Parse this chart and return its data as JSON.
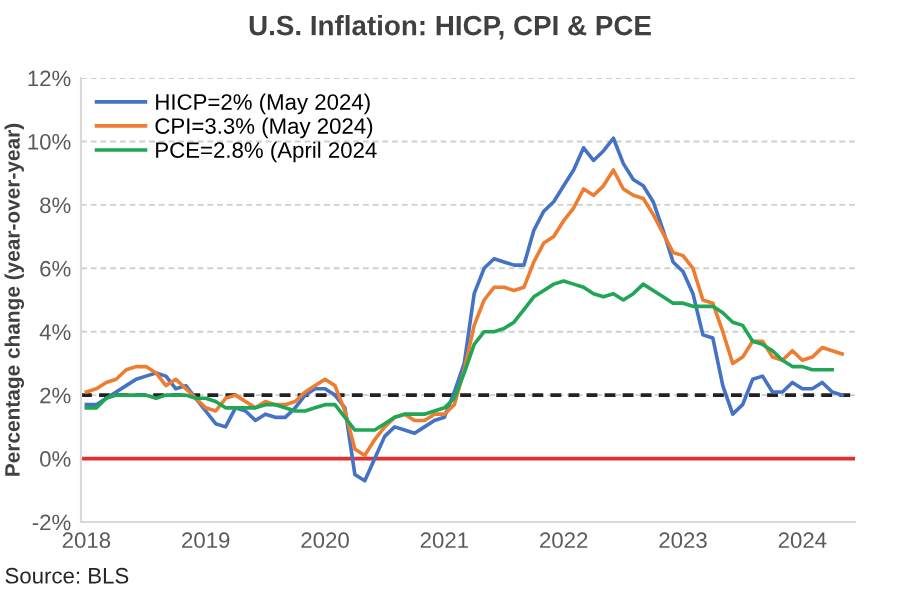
{
  "chart_data": {
    "type": "line",
    "title": "U.S. Inflation: HICP, CPI & PCE",
    "ylabel": "Percentage change (year-over-year)",
    "annotations": [
      "Source: BLS"
    ],
    "x": [
      "2018-01",
      "2018-02",
      "2018-03",
      "2018-04",
      "2018-05",
      "2018-06",
      "2018-07",
      "2018-08",
      "2018-09",
      "2018-10",
      "2018-11",
      "2018-12",
      "2019-01",
      "2019-02",
      "2019-03",
      "2019-04",
      "2019-05",
      "2019-06",
      "2019-07",
      "2019-08",
      "2019-09",
      "2019-10",
      "2019-11",
      "2019-12",
      "2020-01",
      "2020-02",
      "2020-03",
      "2020-04",
      "2020-05",
      "2020-06",
      "2020-07",
      "2020-08",
      "2020-09",
      "2020-10",
      "2020-11",
      "2020-12",
      "2021-01",
      "2021-02",
      "2021-03",
      "2021-04",
      "2021-05",
      "2021-06",
      "2021-07",
      "2021-08",
      "2021-09",
      "2021-10",
      "2021-11",
      "2021-12",
      "2022-01",
      "2022-02",
      "2022-03",
      "2022-04",
      "2022-05",
      "2022-06",
      "2022-07",
      "2022-08",
      "2022-09",
      "2022-10",
      "2022-11",
      "2022-12",
      "2023-01",
      "2023-02",
      "2023-03",
      "2023-04",
      "2023-05",
      "2023-06",
      "2023-07",
      "2023-08",
      "2023-09",
      "2023-10",
      "2023-11",
      "2023-12",
      "2024-01",
      "2024-02",
      "2024-03",
      "2024-04",
      "2024-05"
    ],
    "series": [
      {
        "name": "HICP=2% (May 2024)",
        "color": "#4472c4",
        "values": [
          1.7,
          1.7,
          1.9,
          2.1,
          2.3,
          2.5,
          2.6,
          2.7,
          2.6,
          2.2,
          2.3,
          1.9,
          1.5,
          1.1,
          1.0,
          1.6,
          1.5,
          1.2,
          1.4,
          1.3,
          1.3,
          1.6,
          2.0,
          2.2,
          2.2,
          2.0,
          1.6,
          -0.5,
          -0.7,
          0.0,
          0.7,
          1.0,
          0.9,
          0.8,
          1.0,
          1.2,
          1.3,
          2.1,
          3.0,
          5.2,
          6.0,
          6.3,
          6.2,
          6.1,
          6.1,
          7.2,
          7.8,
          8.1,
          8.6,
          9.1,
          9.8,
          9.4,
          9.7,
          10.1,
          9.3,
          8.8,
          8.6,
          8.1,
          7.2,
          6.2,
          5.9,
          5.2,
          3.9,
          3.8,
          2.3,
          1.4,
          1.7,
          2.5,
          2.6,
          2.1,
          2.1,
          2.4,
          2.2,
          2.2,
          2.4,
          2.1,
          2.0
        ]
      },
      {
        "name": "CPI=3.3% (May 2024)",
        "color": "#ed7d31",
        "values": [
          2.1,
          2.2,
          2.4,
          2.5,
          2.8,
          2.9,
          2.9,
          2.7,
          2.3,
          2.5,
          2.2,
          1.9,
          1.6,
          1.5,
          1.9,
          2.0,
          1.8,
          1.6,
          1.8,
          1.7,
          1.7,
          1.8,
          2.1,
          2.3,
          2.5,
          2.3,
          1.5,
          0.3,
          0.1,
          0.6,
          1.0,
          1.3,
          1.4,
          1.2,
          1.2,
          1.4,
          1.4,
          1.7,
          2.8,
          4.2,
          5.0,
          5.4,
          5.4,
          5.3,
          5.4,
          6.2,
          6.8,
          7.0,
          7.5,
          7.9,
          8.5,
          8.3,
          8.6,
          9.1,
          8.5,
          8.3,
          8.2,
          7.7,
          7.1,
          6.5,
          6.4,
          6.0,
          5.0,
          4.9,
          4.0,
          3.0,
          3.2,
          3.7,
          3.7,
          3.2,
          3.1,
          3.4,
          3.1,
          3.2,
          3.5,
          3.4,
          3.3
        ]
      },
      {
        "name": "PCE=2.8% (April 2024",
        "color": "#21a656",
        "values": [
          1.6,
          1.6,
          1.9,
          2.0,
          2.0,
          2.0,
          2.0,
          1.9,
          2.0,
          2.0,
          2.0,
          1.9,
          1.9,
          1.8,
          1.6,
          1.6,
          1.6,
          1.6,
          1.7,
          1.7,
          1.6,
          1.5,
          1.5,
          1.6,
          1.7,
          1.7,
          1.3,
          0.9,
          0.9,
          0.9,
          1.1,
          1.3,
          1.4,
          1.4,
          1.4,
          1.5,
          1.6,
          1.9,
          2.7,
          3.6,
          4.0,
          4.0,
          4.1,
          4.3,
          4.7,
          5.1,
          5.3,
          5.5,
          5.6,
          5.5,
          5.4,
          5.2,
          5.1,
          5.2,
          5.0,
          5.2,
          5.5,
          5.3,
          5.1,
          4.9,
          4.9,
          4.8,
          4.8,
          4.8,
          4.6,
          4.3,
          4.2,
          3.7,
          3.6,
          3.4,
          3.1,
          2.9,
          2.9,
          2.8,
          2.8,
          2.8,
          null
        ]
      }
    ],
    "ref_lines": [
      {
        "axis": "y",
        "value": 2,
        "color": "#222222",
        "line_style": "dashed"
      },
      {
        "axis": "y",
        "value": 0,
        "color": "#e03030",
        "line_style": "solid"
      }
    ],
    "xlim": [
      "2017-12-15",
      "2024-06-10"
    ],
    "xticks": [
      {
        "value": "2018",
        "label": "2018"
      },
      {
        "value": "2019",
        "label": "2019"
      },
      {
        "value": "2020",
        "label": "2020"
      },
      {
        "value": "2021",
        "label": "2021"
      },
      {
        "value": "2022",
        "label": "2022"
      },
      {
        "value": "2023",
        "label": "2023"
      },
      {
        "value": "2024",
        "label": "2024"
      }
    ],
    "ylim": [
      -2,
      12
    ],
    "yticks": [
      {
        "value": -2,
        "label": "-2%"
      },
      {
        "value": 0,
        "label": "0%"
      },
      {
        "value": 2,
        "label": "2%"
      },
      {
        "value": 4,
        "label": "4%"
      },
      {
        "value": 6,
        "label": "6%"
      },
      {
        "value": 8,
        "label": "8%"
      },
      {
        "value": 10,
        "label": "10%"
      },
      {
        "value": 12,
        "label": "12%"
      }
    ],
    "grid": "y",
    "legend": "top left",
    "marker": "none",
    "line_style": "solid"
  }
}
